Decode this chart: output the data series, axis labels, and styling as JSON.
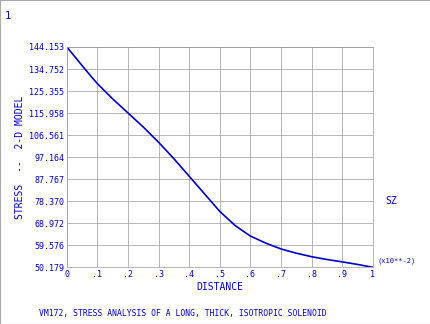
{
  "title": "1",
  "subtitle": "VM172, STRESS ANALYSIS OF A LONG, THICK, ISOTROPIC SOLENOID",
  "xlabel": "DISTANCE",
  "ylabel": "STRESS  --  2-D MODEL",
  "legend_label": "SZ",
  "x_unit_label": "(x10**-2)",
  "xlim": [
    0.0,
    1.0
  ],
  "ylim": [
    50.179,
    144.153
  ],
  "xticks": [
    0.0,
    0.1,
    0.2,
    0.3,
    0.4,
    0.5,
    0.6,
    0.7,
    0.8,
    0.9,
    1.0
  ],
  "xtick_labels": [
    "0",
    ".1",
    ".2",
    ".3",
    ".4",
    ".5",
    ".6",
    ".7",
    ".8",
    ".9",
    "1"
  ],
  "yticks": [
    50.179,
    59.576,
    68.972,
    78.37,
    87.767,
    97.164,
    106.561,
    115.958,
    125.355,
    134.752,
    144.153
  ],
  "ytick_labels": [
    "50.179",
    "59.576",
    "68.972",
    "78.370",
    "87.767",
    "97.164",
    "106.561",
    "115.958",
    "125.355",
    "134.752",
    "144.153"
  ],
  "line_color": "#0000cc",
  "bg_color": "#ffffff",
  "plot_bg_color": "#ffffff",
  "grid_color": "#999999",
  "text_color": "#0000cc",
  "border_color": "#aaaaaa",
  "curve_x": [
    0.0,
    0.02,
    0.05,
    0.08,
    0.1,
    0.15,
    0.2,
    0.25,
    0.3,
    0.35,
    0.4,
    0.45,
    0.5,
    0.55,
    0.6,
    0.65,
    0.7,
    0.75,
    0.8,
    0.85,
    0.9,
    0.95,
    1.0
  ],
  "curve_y": [
    144.153,
    141.0,
    136.2,
    131.5,
    128.5,
    122.0,
    116.0,
    110.0,
    103.5,
    96.5,
    89.0,
    81.5,
    74.0,
    68.0,
    63.5,
    60.5,
    58.0,
    56.2,
    54.7,
    53.5,
    52.5,
    51.4,
    50.179
  ]
}
